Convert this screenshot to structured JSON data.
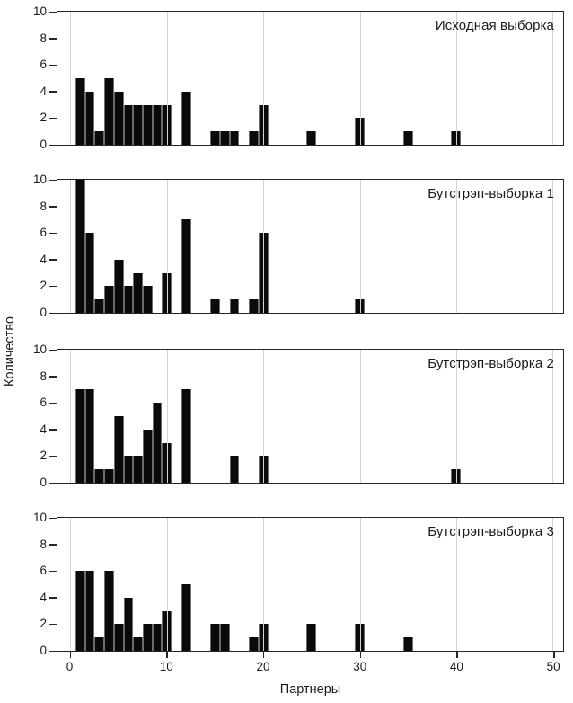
{
  "figure": {
    "xlabel": "Партнеры",
    "ylabel": "Количество",
    "xticks": [
      0,
      10,
      20,
      30,
      40,
      50
    ],
    "yticks": [
      0,
      2,
      4,
      6,
      8,
      10
    ],
    "xlim": [
      -1.35,
      51.1
    ],
    "ylim": [
      0,
      10
    ],
    "colors": {
      "bar": "#0a0a0a",
      "grid": "#d4d4d4",
      "spine": "#262626",
      "text": "#1a1a1a",
      "background": "#ffffff"
    }
  },
  "chart_data": [
    {
      "type": "bar",
      "title": "Исходная выборка",
      "x": [
        1,
        2,
        3,
        4,
        5,
        6,
        7,
        8,
        9,
        10,
        12,
        15,
        16,
        17,
        19,
        20,
        25,
        30,
        35,
        40
      ],
      "values": [
        5,
        4,
        1,
        5,
        4,
        3,
        3,
        3,
        3,
        3,
        4,
        1,
        1,
        1,
        1,
        3,
        1,
        2,
        1,
        1
      ],
      "xlabel": "Партнеры",
      "ylabel": "Количество",
      "ylim": [
        0,
        10
      ],
      "bin_width": 1,
      "total_count": 50
    },
    {
      "type": "bar",
      "title": "Бутстрэп-выборка 1",
      "x": [
        1,
        2,
        3,
        4,
        5,
        6,
        7,
        8,
        10,
        12,
        15,
        17,
        19,
        20,
        30
      ],
      "values": [
        10,
        6,
        1,
        2,
        4,
        2,
        3,
        2,
        3,
        7,
        1,
        1,
        1,
        6,
        1
      ],
      "xlabel": "Партнеры",
      "ylabel": "Количество",
      "ylim": [
        0,
        10
      ],
      "bin_width": 1,
      "total_count": 50
    },
    {
      "type": "bar",
      "title": "Бутстрэп-выборка 2",
      "x": [
        1,
        2,
        3,
        4,
        5,
        6,
        7,
        8,
        9,
        10,
        12,
        17,
        20,
        40
      ],
      "values": [
        7,
        7,
        1,
        1,
        5,
        2,
        2,
        4,
        6,
        3,
        7,
        2,
        2,
        1
      ],
      "xlabel": "Партнеры",
      "ylabel": "Количество",
      "ylim": [
        0,
        10
      ],
      "bin_width": 1,
      "total_count": 50
    },
    {
      "type": "bar",
      "title": "Бутстрэп-выборка 3",
      "x": [
        1,
        2,
        3,
        4,
        5,
        6,
        7,
        8,
        9,
        10,
        12,
        15,
        16,
        19,
        20,
        25,
        30,
        35
      ],
      "values": [
        6,
        6,
        1,
        6,
        2,
        4,
        1,
        2,
        2,
        3,
        5,
        2,
        2,
        1,
        2,
        2,
        2,
        1
      ],
      "xlabel": "Партнеры",
      "ylabel": "Количество",
      "ylim": [
        0,
        10
      ],
      "bin_width": 1,
      "total_count": 50
    }
  ]
}
